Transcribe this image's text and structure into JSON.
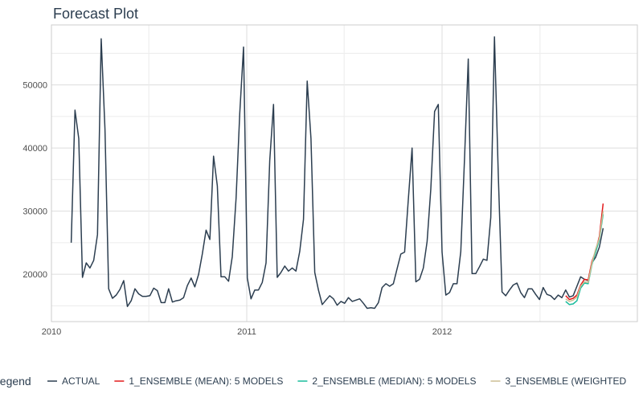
{
  "chart_data": {
    "type": "line",
    "title": "Forecast Plot",
    "xlabel": "",
    "ylabel": "",
    "xlim": [
      "2010-01-01",
      "2012-12-31"
    ],
    "ylim": [
      12500,
      59500
    ],
    "x_ticks": [
      "2010",
      "2011",
      "2012"
    ],
    "y_ticks": [
      20000,
      30000,
      40000,
      50000
    ],
    "grid": true,
    "legend": {
      "title": "Legend",
      "placement": "bottom"
    },
    "series": [
      {
        "name": "ACTUAL",
        "color": "#2c3e50",
        "x": [
          "2010-02-07",
          "2010-02-14",
          "2010-02-21",
          "2010-02-28",
          "2010-03-07",
          "2010-03-14",
          "2010-03-21",
          "2010-03-28",
          "2010-04-04",
          "2010-04-11",
          "2010-04-18",
          "2010-04-25",
          "2010-05-02",
          "2010-05-09",
          "2010-05-16",
          "2010-05-23",
          "2010-05-30",
          "2010-06-06",
          "2010-06-13",
          "2010-06-20",
          "2010-06-27",
          "2010-07-04",
          "2010-07-11",
          "2010-07-18",
          "2010-07-25",
          "2010-08-01",
          "2010-08-08",
          "2010-08-15",
          "2010-08-22",
          "2010-08-29",
          "2010-09-05",
          "2010-09-12",
          "2010-09-19",
          "2010-09-26",
          "2010-10-03",
          "2010-10-10",
          "2010-10-17",
          "2010-10-24",
          "2010-10-31",
          "2010-11-07",
          "2010-11-14",
          "2010-11-21",
          "2010-11-28",
          "2010-12-05",
          "2010-12-12",
          "2010-12-19",
          "2010-12-26",
          "2011-01-02",
          "2011-01-09",
          "2011-01-16",
          "2011-01-23",
          "2011-01-30",
          "2011-02-06",
          "2011-02-13",
          "2011-02-20",
          "2011-02-27",
          "2011-03-06",
          "2011-03-13",
          "2011-03-20",
          "2011-03-27",
          "2011-04-03",
          "2011-04-10",
          "2011-04-17",
          "2011-04-24",
          "2011-05-01",
          "2011-05-08",
          "2011-05-15",
          "2011-05-22",
          "2011-05-29",
          "2011-06-05",
          "2011-06-12",
          "2011-06-19",
          "2011-06-26",
          "2011-07-03",
          "2011-07-10",
          "2011-07-17",
          "2011-07-24",
          "2011-07-31",
          "2011-08-07",
          "2011-08-14",
          "2011-08-21",
          "2011-08-28",
          "2011-09-04",
          "2011-09-11",
          "2011-09-18",
          "2011-09-25",
          "2011-10-02",
          "2011-10-09",
          "2011-10-16",
          "2011-10-23",
          "2011-10-30",
          "2011-11-06",
          "2011-11-13",
          "2011-11-20",
          "2011-11-27",
          "2011-12-04",
          "2011-12-11",
          "2011-12-18",
          "2011-12-25",
          "2012-01-01",
          "2012-01-08",
          "2012-01-15",
          "2012-01-22",
          "2012-01-29",
          "2012-02-05",
          "2012-02-12",
          "2012-02-19",
          "2012-02-26",
          "2012-03-04",
          "2012-03-11",
          "2012-03-18",
          "2012-03-25",
          "2012-04-01",
          "2012-04-08",
          "2012-04-15",
          "2012-04-22",
          "2012-04-29",
          "2012-05-06",
          "2012-05-13",
          "2012-05-20",
          "2012-05-27",
          "2012-06-03",
          "2012-06-10",
          "2012-06-17",
          "2012-06-24",
          "2012-07-01",
          "2012-07-08",
          "2012-07-15",
          "2012-07-22",
          "2012-07-29",
          "2012-08-05",
          "2012-08-12",
          "2012-08-19",
          "2012-08-26",
          "2012-09-02",
          "2012-09-09",
          "2012-09-16",
          "2012-09-23",
          "2012-09-30",
          "2012-10-07",
          "2012-10-14",
          "2012-10-21",
          "2012-10-28"
        ],
        "values": [
          25000,
          46000,
          41500,
          19500,
          21800,
          21000,
          22200,
          26300,
          57300,
          43000,
          17700,
          16200,
          16700,
          17600,
          19000,
          14900,
          15800,
          17700,
          16900,
          16500,
          16500,
          16600,
          17800,
          17400,
          15500,
          15500,
          17700,
          15600,
          15800,
          15900,
          16300,
          18200,
          19400,
          18000,
          20000,
          23200,
          27000,
          25500,
          38700,
          34000,
          19600,
          19600,
          18900,
          22800,
          32000,
          45500,
          56000,
          19400,
          16100,
          17500,
          17500,
          18700,
          21800,
          38000,
          46900,
          19500,
          20300,
          21300,
          20500,
          21000,
          20500,
          23600,
          28700,
          50600,
          41500,
          20300,
          17500,
          15200,
          15900,
          16600,
          16100,
          15100,
          15700,
          15400,
          16300,
          15700,
          15900,
          16100,
          15400,
          14600,
          14700,
          14600,
          15500,
          17900,
          18500,
          18100,
          18500,
          20900,
          23200,
          23500,
          32000,
          40000,
          18800,
          19200,
          21000,
          25200,
          33500,
          45800,
          46900,
          23500,
          16700,
          17100,
          18500,
          18500,
          23600,
          38500,
          54100,
          20100,
          20100,
          21200,
          22400,
          22200,
          29000,
          57600,
          36000,
          17200,
          16600,
          17500,
          18300,
          18600,
          17100,
          16300,
          17700,
          17700,
          16800,
          16000,
          17900,
          16800,
          16600,
          16000,
          16700,
          16300,
          17500,
          16400,
          16600,
          18100,
          19600,
          19200,
          19000,
          21800,
          22700,
          24300,
          27300
        ]
      },
      {
        "name": "1_ENSEMBLE (MEAN): 5 MODELS",
        "color": "#e31a1c",
        "x": [
          "2012-08-19",
          "2012-08-26",
          "2012-09-02",
          "2012-09-09",
          "2012-09-16",
          "2012-09-23",
          "2012-09-30",
          "2012-10-07",
          "2012-10-14",
          "2012-10-21",
          "2012-10-28"
        ],
        "values": [
          16600,
          16000,
          16200,
          16700,
          18300,
          19200,
          19100,
          22000,
          23700,
          26000,
          31200
        ]
      },
      {
        "name": "2_ENSEMBLE (MEDIAN): 5 MODELS",
        "color": "#18bc9c",
        "x": [
          "2012-08-19",
          "2012-08-26",
          "2012-09-02",
          "2012-09-09",
          "2012-09-16",
          "2012-09-23",
          "2012-09-30",
          "2012-10-07",
          "2012-10-14",
          "2012-10-21",
          "2012-10-28"
        ],
        "values": [
          15700,
          15200,
          15300,
          15800,
          17800,
          18600,
          18500,
          21500,
          23500,
          25500,
          29500
        ]
      },
      {
        "name": "3_ENSEMBLE (WEIGHTED",
        "color": "#ccbe93",
        "x": [
          "2012-08-19",
          "2012-08-26",
          "2012-09-02",
          "2012-09-09",
          "2012-09-16",
          "2012-09-23",
          "2012-09-30",
          "2012-10-07",
          "2012-10-14",
          "2012-10-21",
          "2012-10-28"
        ],
        "values": [
          16100,
          15700,
          15900,
          16400,
          18100,
          18800,
          18700,
          21700,
          24000,
          25700,
          30000
        ]
      }
    ]
  }
}
